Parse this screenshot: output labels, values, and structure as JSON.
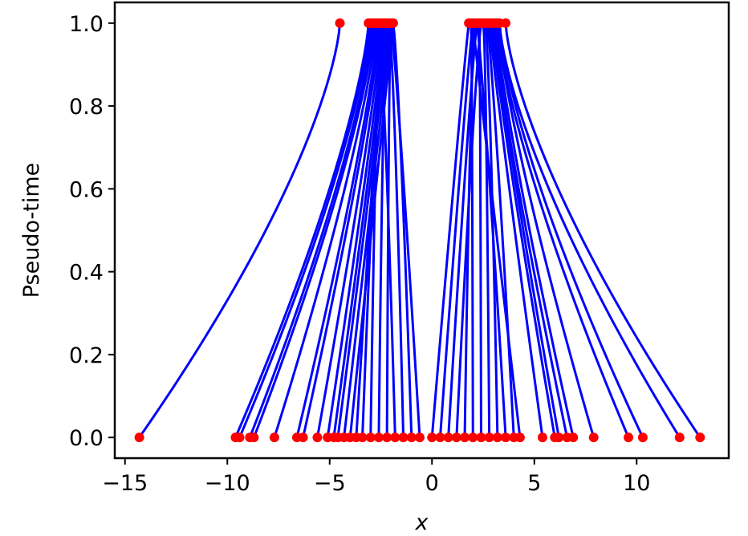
{
  "chart_data": {
    "type": "line",
    "title": "",
    "xlabel": "x",
    "ylabel": "Pseudo-time",
    "xlim": [
      -15.5,
      14.5
    ],
    "ylim": [
      -0.05,
      1.05
    ],
    "xticks": [
      {
        "value": -15,
        "label": "−15"
      },
      {
        "value": -10,
        "label": "−10"
      },
      {
        "value": -5,
        "label": "−5"
      },
      {
        "value": 0,
        "label": "0"
      },
      {
        "value": 5,
        "label": "5"
      },
      {
        "value": 10,
        "label": "10"
      }
    ],
    "yticks": [
      {
        "value": 0.0,
        "label": "0.0"
      },
      {
        "value": 0.2,
        "label": "0.2"
      },
      {
        "value": 0.4,
        "label": "0.4"
      },
      {
        "value": 0.6,
        "label": "0.6"
      },
      {
        "value": 0.8,
        "label": "0.8"
      },
      {
        "value": 1.0,
        "label": "1.0"
      }
    ],
    "grid": false,
    "legend": "none",
    "line_color": "#0000ff",
    "marker_color": "#ff0000",
    "trajectories": [
      {
        "x0": -14.3,
        "x1": -4.5
      },
      {
        "x0": -9.6,
        "x1": -3.1
      },
      {
        "x0": -9.4,
        "x1": -3.0
      },
      {
        "x0": -8.9,
        "x1": -2.9
      },
      {
        "x0": -8.7,
        "x1": -2.8
      },
      {
        "x0": -7.7,
        "x1": -2.7
      },
      {
        "x0": -6.6,
        "x1": -2.6
      },
      {
        "x0": -6.3,
        "x1": -2.5
      },
      {
        "x0": -5.6,
        "x1": -2.4
      },
      {
        "x0": -5.1,
        "x1": -2.3
      },
      {
        "x0": -4.8,
        "x1": -2.2
      },
      {
        "x0": -4.6,
        "x1": -2.1
      },
      {
        "x0": -4.3,
        "x1": -2.0
      },
      {
        "x0": -4.0,
        "x1": -1.9
      },
      {
        "x0": -3.7,
        "x1": -2.3
      },
      {
        "x0": -3.4,
        "x1": -2.4
      },
      {
        "x0": -3.0,
        "x1": -2.5
      },
      {
        "x0": -2.6,
        "x1": -2.2
      },
      {
        "x0": -2.2,
        "x1": -2.0
      },
      {
        "x0": -1.8,
        "x1": -2.6
      },
      {
        "x0": -1.4,
        "x1": -2.1
      },
      {
        "x0": -1.0,
        "x1": -1.9
      },
      {
        "x0": -0.6,
        "x1": -2.0
      },
      {
        "x0": 0.0,
        "x1": 1.8
      },
      {
        "x0": 0.4,
        "x1": 2.0
      },
      {
        "x0": 0.8,
        "x1": 2.2
      },
      {
        "x0": 1.2,
        "x1": 2.4
      },
      {
        "x0": 1.6,
        "x1": 2.1
      },
      {
        "x0": 2.0,
        "x1": 1.9
      },
      {
        "x0": 2.4,
        "x1": 2.3
      },
      {
        "x0": 2.8,
        "x1": 2.5
      },
      {
        "x0": 3.2,
        "x1": 2.6
      },
      {
        "x0": 3.6,
        "x1": 2.2
      },
      {
        "x0": 4.0,
        "x1": 2.7
      },
      {
        "x0": 4.3,
        "x1": 2.0
      },
      {
        "x0": 5.4,
        "x1": 2.8
      },
      {
        "x0": 6.0,
        "x1": 2.9
      },
      {
        "x0": 6.2,
        "x1": 3.0
      },
      {
        "x0": 6.6,
        "x1": 3.0
      },
      {
        "x0": 6.9,
        "x1": 3.1
      },
      {
        "x0": 7.9,
        "x1": 3.2
      },
      {
        "x0": 9.6,
        "x1": 3.2
      },
      {
        "x0": 10.3,
        "x1": 3.3
      },
      {
        "x0": 12.1,
        "x1": 3.3
      },
      {
        "x0": 13.1,
        "x1": 3.6
      }
    ]
  }
}
